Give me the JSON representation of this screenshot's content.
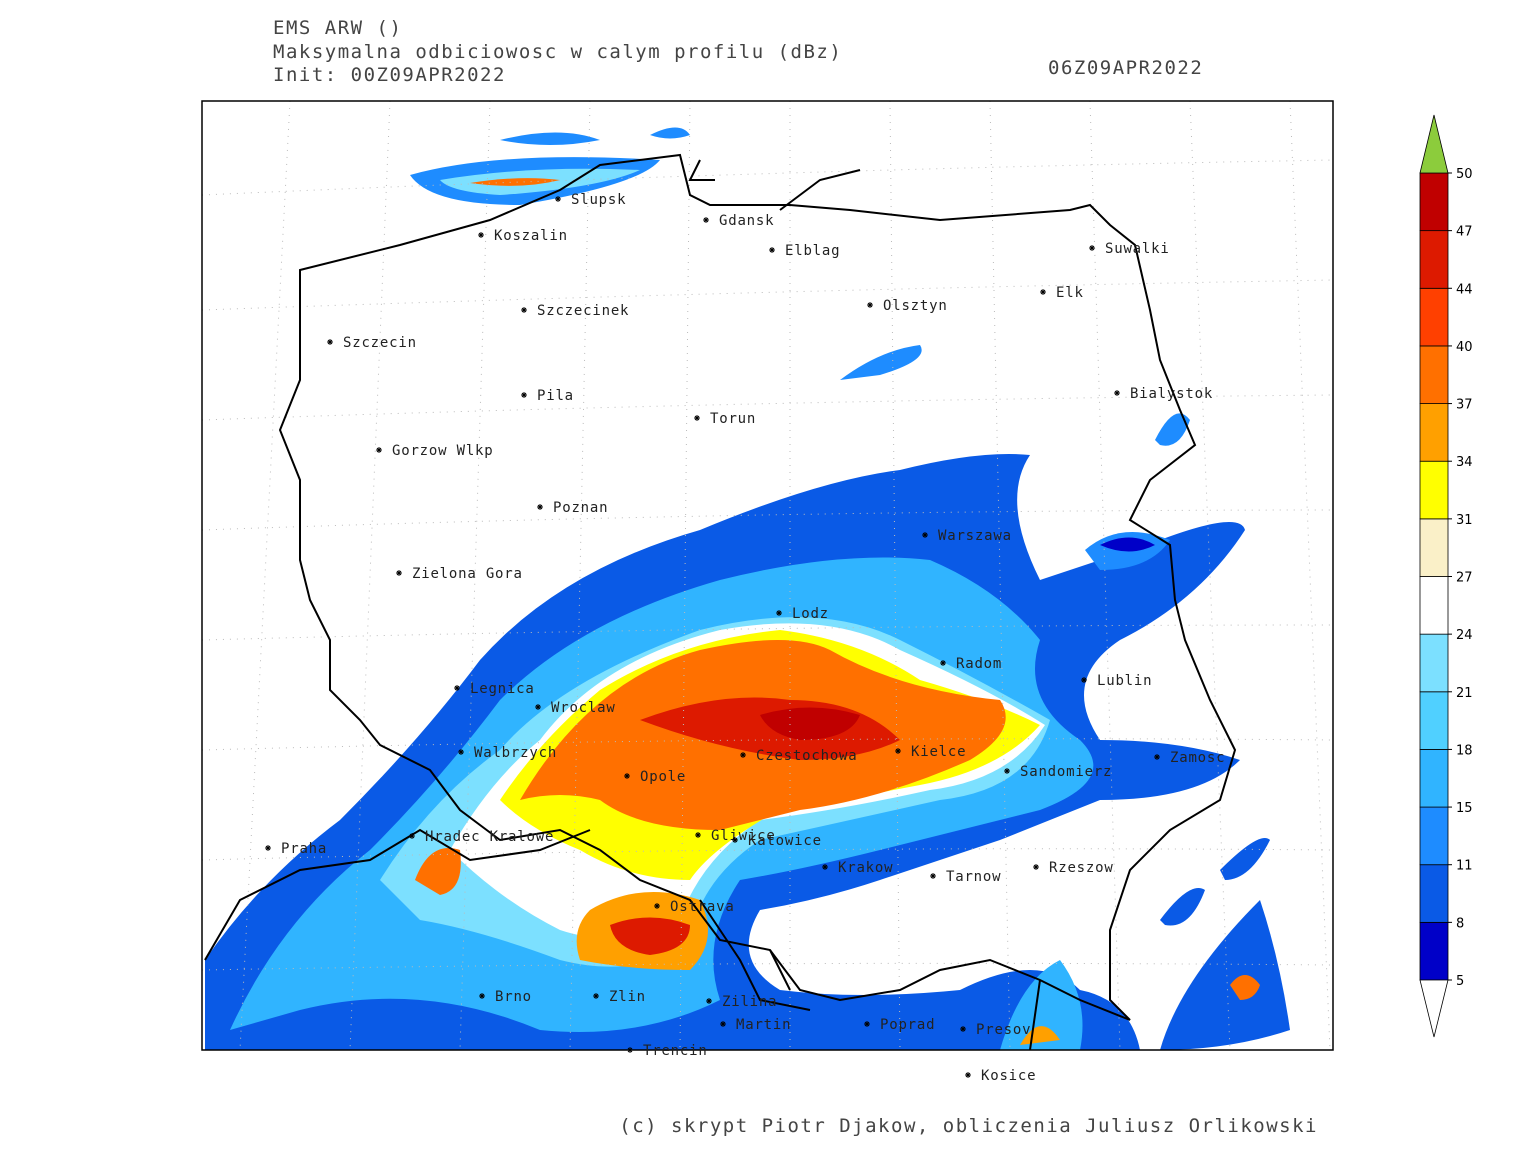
{
  "header": {
    "model": "EMS ARW ()",
    "field": "Maksymalna odbiciowosc w calym profilu (dBz)",
    "init": "Init: 00Z09APR2022",
    "valid": "06Z09APR2022"
  },
  "cities": [
    "Slupsk",
    "Gdansk",
    "Koszalin",
    "Elblag",
    "Suwalki",
    "Elk",
    "Olsztyn",
    "Szczecinek",
    "Szczecin",
    "Bialystok",
    "Pila",
    "Torun",
    "Gorzow Wlkp",
    "Poznan",
    "Warszawa",
    "Zielona Gora",
    "Lodz",
    "Radom",
    "Lublin",
    "Legnica",
    "Wroclaw",
    "Walbrzych",
    "Czestochowa",
    "Kielce",
    "Zamosc",
    "Opole",
    "Sandomierz",
    "Hradec Kralowe",
    "Gliwice",
    "Katowice",
    "Praha",
    "Krakow",
    "Rzeszow",
    "Tarnow",
    "Ostrava",
    "Brno",
    "Zlin",
    "Zilina",
    "Martin",
    "Poprad",
    "Presov",
    "Trencin",
    "Kosice"
  ],
  "colorbar": {
    "ticks": [
      5,
      8,
      11,
      15,
      18,
      21,
      24,
      27,
      31,
      34,
      37,
      40,
      44,
      47,
      50
    ],
    "colors": [
      "#0000c8",
      "#0a5ae6",
      "#1e8cff",
      "#30b4ff",
      "#50d0ff",
      "#7ce0ff",
      "#ffffff",
      "#faf0c8",
      "#ffff00",
      "#ffa000",
      "#ff7000",
      "#ff4000",
      "#dd1a00",
      "#c00000"
    ],
    "under_color": "#ffffff",
    "over_color": "#8ccc3c"
  },
  "footer": {
    "credit": "(c) skrypt Piotr Djakow, obliczenia Juliusz Orlikowski"
  }
}
